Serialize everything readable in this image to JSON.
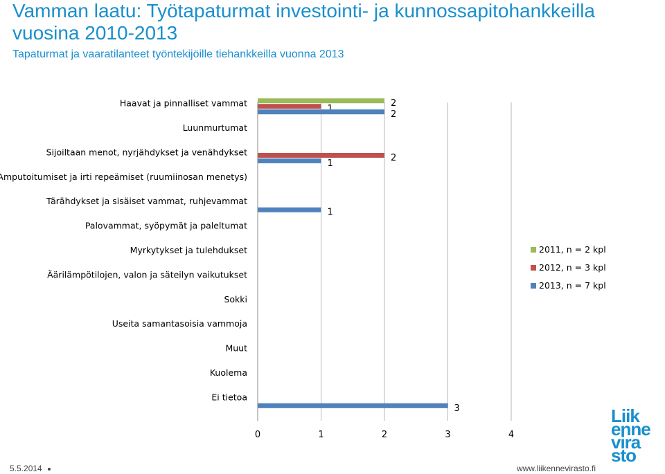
{
  "header": {
    "title": "Vamman laatu: Työtapaturmat investointi- ja kunnossapitohankkeilla vuosina 2010-2013",
    "subtitle": "Tapaturmat ja vaaratilanteet työntekijöille tiehankkeilla vuonna 2013"
  },
  "footer": {
    "date": "5.5.2014",
    "url": "www.liikennevirasto.fi"
  },
  "logo": {
    "lines": [
      "Liik",
      "enne",
      "vira",
      "sto"
    ]
  },
  "chart_data": {
    "type": "bar",
    "orientation": "horizontal",
    "categories": [
      "Haavat ja pinnalliset vammat",
      "Luunmurtumat",
      "Sijoiltaan menot, nyrjähdykset ja venähdykset",
      "Amputoitumiset ja irti repeämiset (ruumiinosan menetys)",
      "Tärähdykset ja sisäiset vammat, ruhjevammat",
      "Palovammat, syöpymät ja paleltumat",
      "Myrkytykset ja tulehdukset",
      "Äärilämpötilojen, valon ja säteilyn vaikutukset",
      "Sokki",
      "Useita samantasoisia vammoja",
      "Muut",
      "Kuolema",
      "Ei tietoa"
    ],
    "series": [
      {
        "name": "2011, n = 2 kpl",
        "color": "#9bbb59",
        "values": [
          2,
          null,
          null,
          null,
          null,
          null,
          null,
          null,
          null,
          null,
          null,
          null,
          null
        ]
      },
      {
        "name": "2012, n = 3 kpl",
        "color": "#c0504d",
        "values": [
          1,
          null,
          2,
          null,
          null,
          null,
          null,
          null,
          null,
          null,
          null,
          null,
          null
        ]
      },
      {
        "name": "2013, n = 7 kpl",
        "color": "#4f81bd",
        "values": [
          2,
          null,
          1,
          null,
          1,
          null,
          null,
          null,
          null,
          null,
          null,
          null,
          3
        ]
      }
    ],
    "xticks": [
      "0",
      "1",
      "2",
      "3",
      "4"
    ],
    "xlim": [
      0,
      4
    ],
    "grid": true,
    "legend": "right"
  }
}
